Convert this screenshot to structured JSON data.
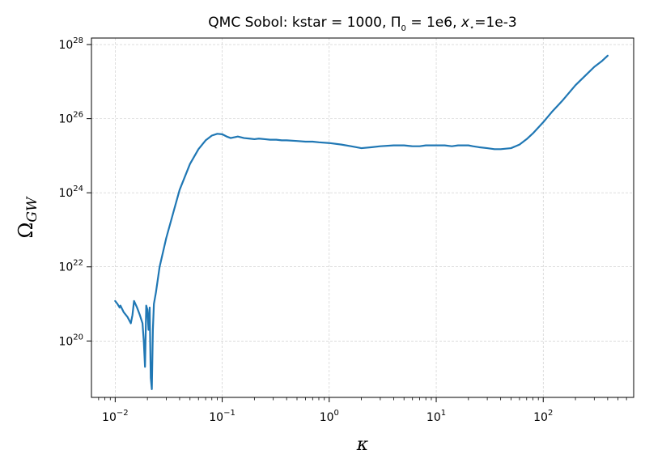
{
  "chart_data": {
    "type": "line",
    "title": {
      "prefix": "QMC Sobol: kstar = 1000, Π",
      "sub0": "0",
      "mid": " = 1e6, ",
      "xstar": "x",
      "star": "⋆",
      "suffix": "=1e-3"
    },
    "xlabel": "κ",
    "ylabel": {
      "main": "Ω",
      "sub": "GW"
    },
    "x_scale": "log",
    "y_scale": "log",
    "xlim": [
      0.006,
      700
    ],
    "ylim": [
      3e+18,
      1.5e+28
    ],
    "grid": true,
    "x_ticks": [
      {
        "value": 0.01,
        "base": "10",
        "exp": "−2"
      },
      {
        "value": 0.1,
        "base": "10",
        "exp": "−1"
      },
      {
        "value": 1,
        "base": "10",
        "exp": "0"
      },
      {
        "value": 10,
        "base": "10",
        "exp": "1"
      },
      {
        "value": 100,
        "base": "10",
        "exp": "2"
      }
    ],
    "y_ticks": [
      {
        "value": 1e+20,
        "base": "10",
        "exp": "20"
      },
      {
        "value": 1e+22,
        "base": "10",
        "exp": "22"
      },
      {
        "value": 1e+24,
        "base": "10",
        "exp": "24"
      },
      {
        "value": 1e+26,
        "base": "10",
        "exp": "26"
      },
      {
        "value": 1e+28,
        "base": "10",
        "exp": "28"
      }
    ],
    "series": [
      {
        "color": "#1f77b4",
        "x": [
          0.01,
          0.0105,
          0.011,
          0.0112,
          0.012,
          0.013,
          0.014,
          0.0145,
          0.015,
          0.016,
          0.017,
          0.018,
          0.0185,
          0.019,
          0.0195,
          0.02,
          0.0205,
          0.021,
          0.0215,
          0.022,
          0.0225,
          0.023,
          0.024,
          0.026,
          0.03,
          0.035,
          0.04,
          0.05,
          0.06,
          0.07,
          0.08,
          0.09,
          0.1,
          0.11,
          0.12,
          0.14,
          0.16,
          0.18,
          0.2,
          0.22,
          0.25,
          0.28,
          0.32,
          0.36,
          0.4,
          0.5,
          0.6,
          0.7,
          0.8,
          1.0,
          1.3,
          1.6,
          2.0,
          2.5,
          3.0,
          4.0,
          5.0,
          6.0,
          7.0,
          8.0,
          9.0,
          10.0,
          12.0,
          14.0,
          16.0,
          18.0,
          20.0,
          22.0,
          25.0,
          30.0,
          35.0,
          40.0,
          50.0,
          60.0,
          70.0,
          80.0,
          100.0,
          120.0,
          150.0,
          200.0,
          250.0,
          300.0,
          350.0,
          400.0
        ],
        "y": [
          1.2e+21,
          1e+21,
          8e+20,
          9e+20,
          6e+20,
          4.5e+20,
          3e+20,
          5e+20,
          1.2e+21,
          8e+20,
          5e+20,
          3e+20,
          1e+20,
          2e+19,
          9e+20,
          7e+20,
          2e+20,
          8e+20,
          1e+19,
          5e+18,
          2e+20,
          1e+21,
          2e+21,
          1e+22,
          6e+22,
          3e+23,
          1.2e+24,
          6e+24,
          1.5e+25,
          2.6e+25,
          3.5e+25,
          3.9e+25,
          3.8e+25,
          3.3e+25,
          3e+25,
          3.3e+25,
          3e+25,
          2.9e+25,
          2.8e+25,
          2.9e+25,
          2.8e+25,
          2.7e+25,
          2.7e+25,
          2.6e+25,
          2.6e+25,
          2.5e+25,
          2.4e+25,
          2.4e+25,
          2.3e+25,
          2.2e+25,
          2e+25,
          1.8e+25,
          1.6e+25,
          1.7e+25,
          1.8e+25,
          1.9e+25,
          1.9e+25,
          1.8e+25,
          1.8e+25,
          1.9e+25,
          1.9e+25,
          1.9e+25,
          1.9e+25,
          1.8e+25,
          1.9e+25,
          1.9e+25,
          1.9e+25,
          1.8e+25,
          1.7e+25,
          1.6e+25,
          1.5e+25,
          1.5e+25,
          1.6e+25,
          2e+25,
          2.8e+25,
          4e+25,
          8e+25,
          1.5e+26,
          3e+26,
          8e+26,
          1.5e+27,
          2.5e+27,
          3.5e+27,
          5e+27
        ]
      }
    ]
  }
}
